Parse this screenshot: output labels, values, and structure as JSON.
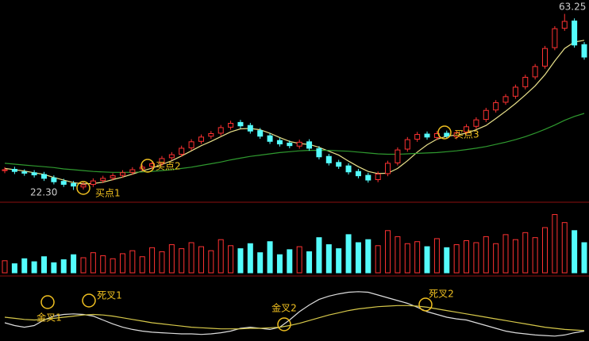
{
  "chart_data": [
    {
      "type": "candlestick",
      "up_color": "#ff3232",
      "down_color": "#54fcfc",
      "ylim": [
        20,
        65
      ],
      "open": [
        26.8,
        27.1,
        26.5,
        26.3,
        25.9,
        25.1,
        24.3,
        23.8,
        23.0,
        23.6,
        24.5,
        25.1,
        25.7,
        26.4,
        27.2,
        27.8,
        28.5,
        29.8,
        30.6,
        32.1,
        33.6,
        34.8,
        35.5,
        36.9,
        38.0,
        37.3,
        36.1,
        34.9,
        33.8,
        33.2,
        32.5,
        33.5,
        31.9,
        30.1,
        28.7,
        27.9,
        26.6,
        25.7,
        24.7,
        26.1,
        28.6,
        31.8,
        34.1,
        35.3,
        34.5,
        35.5,
        34.7,
        35.8,
        37.1,
        38.7,
        40.9,
        42.7,
        44.1,
        46.3,
        48.6,
        51.1,
        55.4,
        59.9,
        61.6,
        56.1
      ],
      "high": [
        27.6,
        27.7,
        27.1,
        26.9,
        26.5,
        25.7,
        24.9,
        24.4,
        24.1,
        25.0,
        25.6,
        26.2,
        26.9,
        27.6,
        28.2,
        29.0,
        30.2,
        31.1,
        32.6,
        34.1,
        35.2,
        36.0,
        37.4,
        38.4,
        38.6,
        37.9,
        36.7,
        35.5,
        34.4,
        33.8,
        34.0,
        34.1,
        32.5,
        30.7,
        29.3,
        28.5,
        27.2,
        26.3,
        26.6,
        29.1,
        32.2,
        34.6,
        35.8,
        35.9,
        36.0,
        36.1,
        36.2,
        37.6,
        39.2,
        41.4,
        43.2,
        44.6,
        46.8,
        49.1,
        51.6,
        55.8,
        60.4,
        63.25,
        62.2,
        56.7
      ],
      "low": [
        26.2,
        26.0,
        25.6,
        25.2,
        24.4,
        23.6,
        23.0,
        22.3,
        22.4,
        23.0,
        23.9,
        24.5,
        25.1,
        25.8,
        26.6,
        27.2,
        27.9,
        29.2,
        30.0,
        31.5,
        33.0,
        34.2,
        34.9,
        36.3,
        36.6,
        35.4,
        34.2,
        33.0,
        32.4,
        32.0,
        31.9,
        31.4,
        29.4,
        28.0,
        27.2,
        25.9,
        25.0,
        24.0,
        24.1,
        25.5,
        28.0,
        31.2,
        33.5,
        34.0,
        33.9,
        34.2,
        34.1,
        35.2,
        36.5,
        38.1,
        40.3,
        42.1,
        43.5,
        45.7,
        48.0,
        50.5,
        54.8,
        59.3,
        55.4,
        52.6
      ],
      "close": [
        27.0,
        26.6,
        26.2,
        25.8,
        25.0,
        24.2,
        23.6,
        23.2,
        23.5,
        24.4,
        25.0,
        25.6,
        26.3,
        27.0,
        27.6,
        28.4,
        29.6,
        30.5,
        32.0,
        33.5,
        34.6,
        35.4,
        36.8,
        37.8,
        37.2,
        36.0,
        34.8,
        33.6,
        33.0,
        32.6,
        33.4,
        32.0,
        30.0,
        28.6,
        27.8,
        26.5,
        25.6,
        24.6,
        26.0,
        28.5,
        31.6,
        34.0,
        35.2,
        34.6,
        35.4,
        34.8,
        35.6,
        37.0,
        38.6,
        40.8,
        42.6,
        44.0,
        46.2,
        48.5,
        51.0,
        55.2,
        59.8,
        61.5,
        56.0,
        53.2
      ],
      "lines": [
        {
          "color": "#e8e08a",
          "values": [
            27.3,
            27.0,
            26.7,
            26.3,
            25.9,
            25.2,
            24.6,
            24.0,
            23.7,
            23.8,
            24.1,
            24.7,
            25.3,
            26.0,
            26.7,
            27.4,
            28.2,
            29.1,
            30.2,
            31.4,
            32.6,
            33.6,
            34.7,
            35.8,
            36.5,
            36.6,
            36.3,
            35.5,
            34.5,
            33.6,
            33.1,
            32.9,
            32.2,
            31.3,
            30.4,
            29.0,
            27.7,
            26.6,
            26.1,
            26.2,
            27.3,
            29.1,
            31.1,
            32.8,
            34.1,
            34.8,
            35.1,
            35.5,
            36.3,
            37.3,
            38.9,
            40.6,
            42.4,
            44.4,
            46.5,
            49.1,
            52.3,
            55.2,
            56.7,
            57.1
          ]
        },
        {
          "color": "#2f9a2f",
          "values": [
            28.5,
            28.3,
            28.1,
            27.9,
            27.7,
            27.5,
            27.2,
            27.0,
            26.8,
            26.6,
            26.5,
            26.4,
            26.4,
            26.4,
            26.5,
            26.6,
            26.8,
            27.0,
            27.3,
            27.6,
            28.0,
            28.4,
            28.8,
            29.3,
            29.7,
            30.1,
            30.4,
            30.7,
            31.0,
            31.2,
            31.4,
            31.5,
            31.5,
            31.5,
            31.4,
            31.3,
            31.1,
            30.9,
            30.7,
            30.6,
            30.6,
            30.7,
            30.8,
            30.9,
            31.0,
            31.2,
            31.4,
            31.7,
            32.0,
            32.4,
            32.9,
            33.4,
            34.0,
            34.7,
            35.5,
            36.4,
            37.4,
            38.5,
            39.4,
            40.1
          ]
        }
      ],
      "annotations": [
        {
          "text": "买点1"
        },
        {
          "text": "买点2"
        },
        {
          "text": "买点3"
        },
        {
          "text": "63.25"
        },
        {
          "text": "22.30"
        }
      ]
    },
    {
      "type": "bar",
      "ylim": [
        0,
        60000
      ],
      "values": [
        12000,
        9000,
        14000,
        11000,
        16000,
        10000,
        13000,
        18000,
        15000,
        20000,
        17000,
        14000,
        19000,
        22000,
        16000,
        25000,
        21000,
        28000,
        24000,
        30000,
        26000,
        22000,
        33000,
        27000,
        24000,
        29000,
        20000,
        31000,
        18000,
        23000,
        26000,
        21000,
        35000,
        28000,
        24000,
        38000,
        30000,
        33000,
        27000,
        42000,
        36000,
        29000,
        31000,
        26000,
        34000,
        25000,
        28000,
        32000,
        30000,
        36000,
        29000,
        38000,
        33000,
        40000,
        35000,
        45000,
        58000,
        50000,
        42000,
        30000
      ]
    },
    {
      "type": "line",
      "ylim": [
        0,
        100
      ],
      "series": [
        {
          "color": "#dddddd",
          "values": [
            30,
            25,
            22,
            25,
            35,
            42,
            45,
            46,
            45,
            42,
            35,
            28,
            22,
            18,
            15,
            13,
            12,
            11,
            10,
            10,
            9,
            10,
            12,
            15,
            20,
            22,
            20,
            18,
            22,
            35,
            50,
            62,
            72,
            78,
            82,
            85,
            86,
            85,
            80,
            75,
            70,
            65,
            58,
            50,
            45,
            40,
            37,
            35,
            30,
            25,
            20,
            15,
            12,
            10,
            8,
            7,
            6,
            8,
            12,
            15
          ]
        },
        {
          "color": "#d6c84a",
          "values": [
            40,
            38,
            36,
            35,
            36,
            38,
            40,
            42,
            44,
            45,
            44,
            42,
            39,
            36,
            33,
            30,
            28,
            26,
            24,
            22,
            21,
            20,
            19,
            19,
            19,
            20,
            20,
            21,
            22,
            25,
            29,
            34,
            39,
            44,
            48,
            52,
            55,
            57,
            59,
            60,
            61,
            61,
            60,
            58,
            55,
            52,
            49,
            46,
            43,
            40,
            37,
            34,
            31,
            28,
            25,
            22,
            20,
            18,
            17,
            16
          ]
        }
      ],
      "annotations": [
        {
          "text": "金叉1"
        },
        {
          "text": "死叉1"
        },
        {
          "text": "金叉2"
        },
        {
          "text": "死叉2"
        }
      ]
    }
  ]
}
